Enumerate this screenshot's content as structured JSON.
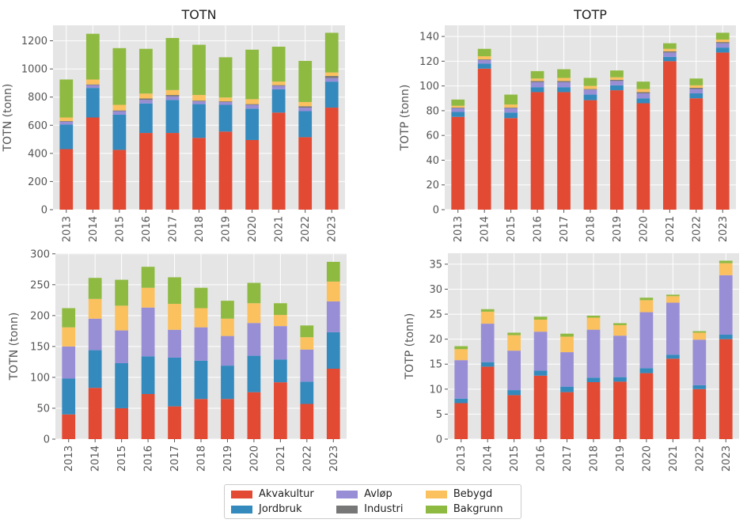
{
  "series_names": [
    "Akvakultur",
    "Jordbruk",
    "Avløp",
    "Industri",
    "Bebygd",
    "Bakgrunn"
  ],
  "colors": {
    "Akvakultur": "#E24A33",
    "Jordbruk": "#348ABD",
    "Avløp": "#988ED5",
    "Industri": "#777777",
    "Bebygd": "#FBC15E",
    "Bakgrunn": "#8EBA42",
    "background": "#E5E5E5",
    "grid": "#FFFFFF"
  },
  "legend": {
    "placement": "bottom-center",
    "order": [
      "Akvakultur",
      "Avløp",
      "Bebygd",
      "Jordbruk",
      "Industri",
      "Bakgrunn"
    ]
  },
  "chart_data": [
    {
      "type": "bar",
      "stacked": true,
      "title": "TOTN",
      "xlabel": "",
      "ylabel": "TOTN (tonn)",
      "categories": [
        "2013",
        "2014",
        "2015",
        "2016",
        "2017",
        "2018",
        "2019",
        "2020",
        "2021",
        "2022",
        "2023"
      ],
      "ylim": [
        0,
        1310
      ],
      "yticks": [
        0,
        200,
        400,
        600,
        800,
        1000,
        1200
      ],
      "grid": true,
      "series": [
        {
          "name": "Akvakultur",
          "values": [
            430,
            655,
            425,
            545,
            545,
            510,
            555,
            495,
            690,
            515,
            725
          ]
        },
        {
          "name": "Jordbruk",
          "values": [
            175,
            210,
            250,
            210,
            235,
            240,
            190,
            223,
            165,
            185,
            185
          ]
        },
        {
          "name": "Avløp",
          "values": [
            20,
            20,
            25,
            25,
            25,
            20,
            20,
            27,
            25,
            25,
            25
          ]
        },
        {
          "name": "Industri",
          "values": [
            5,
            5,
            5,
            10,
            10,
            5,
            5,
            5,
            5,
            10,
            15
          ]
        },
        {
          "name": "Bebygd",
          "values": [
            25,
            35,
            40,
            35,
            35,
            40,
            27,
            35,
            25,
            30,
            25
          ]
        },
        {
          "name": "Bakgrunn",
          "values": [
            270,
            325,
            403,
            318,
            370,
            357,
            286,
            352,
            248,
            292,
            282
          ]
        }
      ]
    },
    {
      "type": "bar",
      "stacked": true,
      "title": "TOTP",
      "xlabel": "",
      "ylabel": "TOTP (tonn)",
      "categories": [
        "2013",
        "2014",
        "2015",
        "2016",
        "2017",
        "2018",
        "2019",
        "2020",
        "2021",
        "2022",
        "2023"
      ],
      "ylim": [
        0,
        149
      ],
      "yticks": [
        0,
        20,
        40,
        60,
        80,
        100,
        120,
        140
      ],
      "grid": true,
      "series": [
        {
          "name": "Akvakultur",
          "values": [
            75,
            114,
            74,
            95,
            95,
            88.5,
            96.5,
            86,
            120,
            90,
            127
          ]
        },
        {
          "name": "Jordbruk",
          "values": [
            4,
            4,
            4.5,
            4,
            4,
            4.5,
            4,
            4,
            3.5,
            4,
            4
          ]
        },
        {
          "name": "Avløp",
          "values": [
            3,
            3,
            3.5,
            4,
            4,
            4,
            3.5,
            4,
            3.5,
            3.5,
            3.5
          ]
        },
        {
          "name": "Industri",
          "values": [
            0.5,
            0.5,
            0.5,
            1,
            1,
            0.5,
            1,
            1,
            1,
            1,
            1
          ]
        },
        {
          "name": "Bebygd",
          "values": [
            1.5,
            2.5,
            2.5,
            2,
            2.5,
            2.5,
            2,
            2.5,
            2,
            2,
            2
          ]
        },
        {
          "name": "Bakgrunn",
          "values": [
            5,
            6,
            8,
            6,
            7,
            6.5,
            5.5,
            6,
            4.5,
            5.5,
            5.5
          ]
        }
      ]
    },
    {
      "type": "bar",
      "stacked": true,
      "title": "",
      "xlabel": "",
      "ylabel": "TOTN (tonn)",
      "categories": [
        "2013",
        "2014",
        "2015",
        "2016",
        "2017",
        "2018",
        "2019",
        "2020",
        "2021",
        "2022",
        "2023"
      ],
      "ylim": [
        0,
        301
      ],
      "yticks": [
        0,
        50,
        100,
        150,
        200,
        250,
        300
      ],
      "grid": true,
      "series": [
        {
          "name": "Akvakultur",
          "values": [
            40,
            83,
            50,
            73,
            53,
            65,
            65,
            76,
            92,
            57,
            114
          ]
        },
        {
          "name": "Jordbruk",
          "values": [
            58,
            61,
            73,
            61,
            79,
            62,
            54,
            59,
            37,
            36,
            59
          ]
        },
        {
          "name": "Avløp",
          "values": [
            52,
            51,
            53,
            79,
            45,
            54,
            48,
            53,
            54,
            52,
            50
          ]
        },
        {
          "name": "Industri",
          "values": [
            0,
            0,
            0,
            0,
            0,
            0,
            0,
            0,
            0,
            0,
            0
          ]
        },
        {
          "name": "Bebygd",
          "values": [
            31,
            32,
            40,
            32,
            42,
            31,
            28,
            32,
            18,
            20,
            32
          ]
        },
        {
          "name": "Bakgrunn",
          "values": [
            31,
            34,
            42,
            34,
            43,
            33,
            29,
            33,
            19,
            19,
            32
          ]
        }
      ]
    },
    {
      "type": "bar",
      "stacked": true,
      "title": "",
      "xlabel": "",
      "ylabel": "TOTP (tonn)",
      "categories": [
        "2013",
        "2014",
        "2015",
        "2016",
        "2017",
        "2018",
        "2019",
        "2020",
        "2021",
        "2022",
        "2023"
      ],
      "ylim": [
        0,
        37.2
      ],
      "yticks": [
        0,
        5,
        10,
        15,
        20,
        25,
        30,
        35
      ],
      "grid": true,
      "series": [
        {
          "name": "Akvakultur",
          "values": [
            7.2,
            14.5,
            8.8,
            12.7,
            9.4,
            11.4,
            11.5,
            13.2,
            16.1,
            10.0,
            20.0
          ]
        },
        {
          "name": "Jordbruk",
          "values": [
            0.9,
            0.9,
            1.0,
            1.0,
            1.1,
            0.9,
            0.9,
            1.0,
            0.8,
            0.8,
            0.9
          ]
        },
        {
          "name": "Avløp",
          "values": [
            7.7,
            7.7,
            7.9,
            7.8,
            6.9,
            9.6,
            8.3,
            11.2,
            10.4,
            9.1,
            11.9
          ]
        },
        {
          "name": "Industri",
          "values": [
            0,
            0,
            0,
            0,
            0,
            0,
            0,
            0,
            0,
            0,
            0
          ]
        },
        {
          "name": "Bebygd",
          "values": [
            2.2,
            2.4,
            3.1,
            2.4,
            3.1,
            2.4,
            2.1,
            2.4,
            1.3,
            1.4,
            2.4
          ]
        },
        {
          "name": "Bakgrunn",
          "values": [
            0.6,
            0.5,
            0.5,
            0.6,
            0.6,
            0.4,
            0.4,
            0.5,
            0.3,
            0.3,
            0.5
          ]
        }
      ]
    }
  ]
}
